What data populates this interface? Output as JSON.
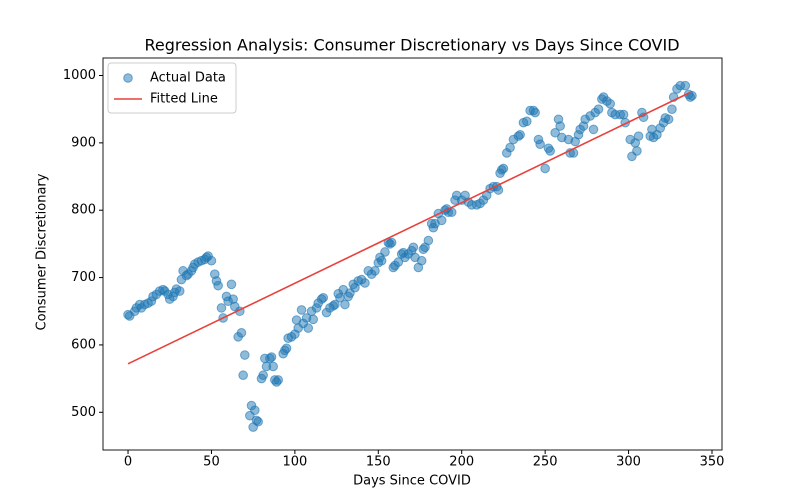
{
  "chart_data": {
    "type": "scatter",
    "title": "Regression Analysis: Consumer Discretionary vs Days Since COVID",
    "x_label": "Days Since COVID",
    "y_label": "Consumer Discretionary",
    "xlim": [
      -15,
      356
    ],
    "ylim": [
      444,
      1026
    ],
    "xticks": [
      0,
      50,
      100,
      150,
      200,
      250,
      300,
      350
    ],
    "yticks": [
      500,
      600,
      700,
      800,
      900,
      1000
    ],
    "grid": false,
    "legend": "upper left",
    "series": [
      {
        "name": "Actual Data",
        "type": "scatter",
        "color": "#1f77b4",
        "x": [
          0,
          1,
          4,
          5,
          7,
          8,
          10,
          12,
          14,
          15,
          17,
          19,
          21,
          22,
          24,
          25,
          27,
          28,
          29,
          31,
          32,
          33,
          35,
          36,
          38,
          39,
          40,
          42,
          44,
          46,
          47,
          48,
          50,
          52,
          53,
          54,
          56,
          57,
          59,
          60,
          62,
          63,
          64,
          66,
          67,
          68,
          69,
          70,
          73,
          74,
          75,
          76,
          77,
          78,
          80,
          81,
          82,
          83,
          85,
          86,
          87,
          88,
          89,
          90,
          93,
          94,
          95,
          96,
          98,
          100,
          101,
          102,
          104,
          105,
          107,
          108,
          110,
          111,
          113,
          114,
          116,
          117,
          119,
          121,
          123,
          124,
          126,
          127,
          129,
          130,
          132,
          133,
          135,
          136,
          138,
          140,
          142,
          144,
          146,
          148,
          150,
          151,
          152,
          154,
          156,
          157,
          158,
          159,
          160,
          162,
          164,
          165,
          166,
          168,
          170,
          171,
          172,
          174,
          176,
          177,
          178,
          180,
          182,
          183,
          184,
          186,
          188,
          190,
          191,
          192,
          194,
          196,
          197,
          200,
          202,
          204,
          206,
          209,
          211,
          213,
          215,
          217,
          219,
          221,
          222,
          223,
          224,
          225,
          227,
          229,
          231,
          234,
          235,
          237,
          239,
          241,
          243,
          244,
          246,
          247,
          250,
          252,
          253,
          256,
          258,
          259,
          260,
          264,
          265,
          267,
          268,
          270,
          271,
          273,
          274,
          277,
          279,
          280,
          282,
          284,
          285,
          287,
          289,
          290,
          292,
          295,
          297,
          298,
          301,
          302,
          304,
          305,
          306,
          308,
          309,
          313,
          314,
          315,
          317,
          319,
          321,
          322,
          324,
          326,
          327,
          329,
          331,
          334,
          336,
          337,
          338
        ],
        "values": [
          645,
          643,
          650,
          655,
          660,
          655,
          660,
          662,
          665,
          672,
          675,
          680,
          682,
          680,
          675,
          668,
          672,
          678,
          683,
          680,
          697,
          710,
          703,
          705,
          710,
          715,
          720,
          723,
          725,
          727,
          730,
          732,
          725,
          705,
          695,
          688,
          655,
          640,
          672,
          665,
          690,
          668,
          657,
          612,
          650,
          618,
          555,
          585,
          495,
          510,
          478,
          503,
          488,
          486,
          550,
          555,
          580,
          568,
          580,
          582,
          568,
          548,
          545,
          548,
          587,
          592,
          595,
          610,
          612,
          616,
          637,
          625,
          652,
          632,
          640,
          625,
          650,
          638,
          655,
          662,
          668,
          670,
          648,
          655,
          658,
          660,
          676,
          670,
          682,
          660,
          672,
          677,
          690,
          685,
          695,
          697,
          692,
          710,
          705,
          710,
          722,
          730,
          725,
          738,
          752,
          750,
          752,
          715,
          718,
          723,
          735,
          737,
          730,
          735,
          740,
          745,
          730,
          715,
          725,
          742,
          745,
          755,
          780,
          774,
          780,
          795,
          785,
          800,
          802,
          797,
          797,
          815,
          822,
          815,
          822,
          812,
          808,
          808,
          810,
          815,
          822,
          832,
          835,
          835,
          830,
          855,
          860,
          862,
          885,
          893,
          905,
          910,
          912,
          930,
          932,
          948,
          948,
          945,
          905,
          898,
          862,
          892,
          888,
          915,
          935,
          925,
          908,
          905,
          885,
          885,
          902,
          912,
          920,
          925,
          935,
          940,
          920,
          945,
          950,
          965,
          968,
          962,
          958,
          945,
          942,
          942,
          942,
          930,
          905,
          880,
          900,
          888,
          910,
          945,
          938,
          910,
          920,
          908,
          912,
          922,
          930,
          937,
          935,
          950,
          968,
          980,
          985,
          985,
          972,
          968,
          970
        ]
      },
      {
        "name": "Fitted Line",
        "type": "line",
        "color": "#e8413c",
        "x": [
          0,
          337
        ],
        "values": [
          572,
          975
        ]
      }
    ]
  }
}
